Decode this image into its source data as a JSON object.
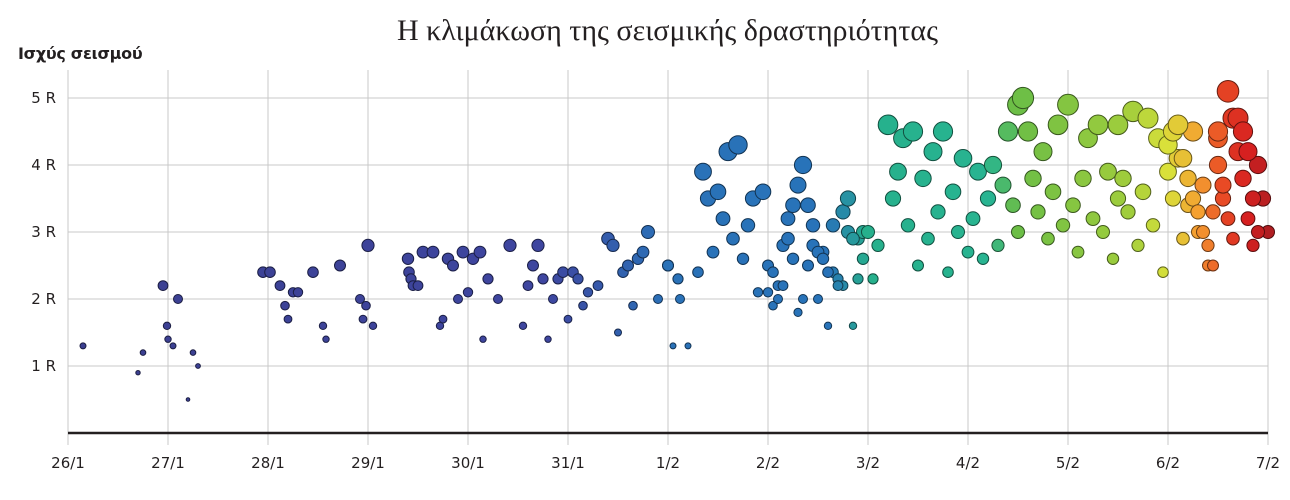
{
  "title": "Η κλιμάκωση της σεισμικής δραστηριότητας",
  "y_axis_label": "Ισχύς σεισμού",
  "chart_data": {
    "type": "scatter",
    "title": "Η κλιμάκωση της σεισμικής δραστηριότητας",
    "xlabel": "",
    "ylabel": "Ισχύς σεισμού",
    "x_ticks": [
      "26/1",
      "27/1",
      "28/1",
      "29/1",
      "30/1",
      "31/1",
      "1/2",
      "2/2",
      "3/2",
      "4/2",
      "5/2",
      "6/2",
      "7/2"
    ],
    "y_ticks": [
      "1 R",
      "2 R",
      "3 R",
      "4 R",
      "5 R"
    ],
    "xlim": [
      0,
      12
    ],
    "ylim": [
      0,
      5.5
    ],
    "grid": true,
    "x_unit": "days since 26/1",
    "y_unit": "Richter magnitude",
    "encoding": "marker size and color scale with magnitude and time (indigo → blue → teal → green → yellow → orange → red)",
    "points_by_day": [
      {
        "day": "26/1–27/1",
        "x": [
          0.15,
          0.7,
          0.75,
          0.95,
          0.99,
          1.0,
          1.05,
          1.1,
          1.2,
          1.25,
          1.3
        ],
        "y": [
          1.3,
          0.9,
          1.2,
          2.2,
          1.6,
          1.4,
          1.3,
          2.0,
          0.5,
          1.2,
          1.0
        ]
      },
      {
        "day": "28/1",
        "x": [
          1.95,
          2.02,
          2.12,
          2.17,
          2.2,
          2.25,
          2.3,
          2.45,
          2.55,
          2.58,
          2.72,
          2.92,
          2.95,
          2.98,
          3.0
        ],
        "y": [
          2.4,
          2.4,
          2.2,
          1.9,
          1.7,
          2.1,
          2.1,
          2.4,
          1.6,
          1.4,
          2.5,
          2.0,
          1.7,
          1.9,
          2.8
        ]
      },
      {
        "day": "29/1",
        "x": [
          3.05,
          3.4,
          3.41,
          3.43,
          3.45,
          3.5,
          3.55,
          3.65,
          3.72,
          3.75,
          3.8,
          3.85,
          3.9,
          3.95,
          4.0,
          4.05,
          4.12,
          4.15,
          4.2,
          4.3,
          4.42
        ],
        "y": [
          1.6,
          2.6,
          2.4,
          2.3,
          2.2,
          2.2,
          2.7,
          2.7,
          1.6,
          1.7,
          2.6,
          2.5,
          2.0,
          2.7,
          2.1,
          2.6,
          2.7,
          1.4,
          2.3,
          2.0,
          2.8
        ]
      },
      {
        "day": "30/1",
        "x": [
          4.55,
          4.6,
          4.65,
          4.7,
          4.75,
          4.8,
          4.85,
          4.9,
          4.95,
          5.0,
          5.05,
          5.1,
          5.15,
          5.2,
          5.3,
          5.4,
          5.45,
          5.5,
          5.55,
          5.6,
          5.65,
          5.7,
          5.75,
          5.8,
          5.9,
          6.0
        ],
        "y": [
          1.6,
          2.2,
          2.5,
          2.8,
          2.3,
          1.4,
          2.0,
          2.3,
          2.4,
          1.7,
          2.4,
          2.3,
          1.9,
          2.1,
          2.2,
          2.9,
          2.8,
          1.5,
          2.4,
          2.5,
          1.9,
          2.6,
          2.7,
          3.0,
          2.0,
          2.5
        ]
      },
      {
        "day": "31/1",
        "x": [
          6.0,
          6.05,
          6.1,
          6.12,
          6.2,
          6.3,
          6.35,
          6.4,
          6.45,
          6.5,
          6.55,
          6.6,
          6.65,
          6.7,
          6.75,
          6.8,
          6.85,
          6.9,
          6.95,
          7.0,
          7.05,
          7.1,
          7.15,
          7.2,
          7.25,
          7.3,
          7.35,
          7.4,
          7.45,
          7.5,
          7.55,
          7.6,
          7.65,
          7.7,
          7.75,
          7.8,
          7.85,
          7.9,
          7.95
        ],
        "y": [
          2.5,
          1.3,
          2.3,
          2.0,
          1.3,
          2.4,
          3.9,
          3.5,
          2.7,
          3.6,
          3.2,
          4.2,
          2.9,
          4.3,
          2.6,
          3.1,
          3.5,
          2.1,
          3.6,
          2.5,
          2.4,
          2.2,
          2.8,
          2.9,
          2.6,
          1.8,
          2.0,
          2.5,
          3.1,
          2.0,
          2.7,
          1.6,
          2.4,
          2.3,
          2.2,
          3.0,
          1.6,
          2.9,
          3.0
        ]
      },
      {
        "day": "1/2–2/2",
        "x": [
          7.0,
          7.05,
          7.1,
          7.15,
          7.2,
          7.25,
          7.3,
          7.35,
          7.4,
          7.45,
          7.5,
          7.55,
          7.6,
          7.65,
          7.7,
          7.75,
          7.8,
          7.85,
          7.9,
          7.95,
          8.0
        ],
        "y": [
          2.1,
          1.9,
          2.0,
          2.2,
          3.2,
          3.4,
          3.7,
          4.0,
          3.4,
          2.8,
          2.7,
          2.6,
          2.4,
          3.1,
          2.2,
          3.3,
          3.5,
          2.9,
          2.3,
          2.6,
          3.0
        ]
      },
      {
        "day": "2/2–3/2",
        "x": [
          8.05,
          8.1,
          8.2,
          8.25,
          8.3,
          8.35,
          8.4,
          8.45,
          8.5,
          8.55,
          8.6,
          8.65,
          8.7,
          8.75,
          8.8,
          8.85,
          8.9,
          8.95,
          9.0,
          9.05,
          9.1,
          9.15,
          9.2,
          9.25,
          9.3,
          9.35,
          9.4,
          9.45,
          9.5
        ],
        "y": [
          2.3,
          2.8,
          4.6,
          3.5,
          3.9,
          4.4,
          3.1,
          4.5,
          2.5,
          3.8,
          2.9,
          4.2,
          3.3,
          4.5,
          2.4,
          3.6,
          3.0,
          4.1,
          2.7,
          3.2,
          3.9,
          2.6,
          3.5,
          4.0,
          2.8,
          3.7,
          4.5,
          3.4,
          3.0
        ]
      },
      {
        "day": "3/2–4/2",
        "x": [
          9.5,
          9.55,
          9.6,
          9.65,
          9.7,
          9.75,
          9.8,
          9.85,
          9.9,
          9.95,
          10.0,
          10.05,
          10.1,
          10.15,
          10.2,
          10.25,
          10.3,
          10.35,
          10.4,
          10.45,
          10.5
        ],
        "y": [
          4.9,
          5.0,
          4.5,
          3.8,
          3.3,
          4.2,
          2.9,
          3.6,
          4.6,
          3.1,
          4.9,
          3.4,
          2.7,
          3.8,
          4.4,
          3.2,
          4.6,
          3.0,
          3.9,
          2.6,
          3.5
        ]
      },
      {
        "day": "4/2–5/2",
        "x": [
          10.5,
          10.55,
          10.6,
          10.65,
          10.7,
          10.75,
          10.8,
          10.85,
          10.9,
          10.95,
          11.0,
          11.05,
          11.1,
          11.15,
          11.2,
          11.25,
          11.3,
          11.35,
          11.4,
          11.45,
          11.5
        ],
        "y": [
          4.6,
          3.8,
          3.3,
          4.8,
          2.8,
          3.6,
          4.7,
          3.1,
          4.4,
          2.4,
          3.9,
          3.5,
          4.1,
          2.9,
          3.4,
          4.5,
          3.0,
          3.7,
          2.5,
          3.3,
          4.4
        ]
      },
      {
        "day": "5/2–6/2",
        "x": [
          11.5,
          11.55,
          11.6,
          11.65,
          11.7,
          11.75,
          11.8,
          11.85,
          11.9,
          11.95,
          12.0
        ],
        "y": [
          4.5,
          3.5,
          5.1,
          4.7,
          4.2,
          3.8,
          3.2,
          2.8,
          4.0,
          3.5,
          3.0
        ]
      },
      {
        "day": "6/2–7/2",
        "x": [
          11.0,
          11.05,
          11.1,
          11.15,
          11.2,
          11.25,
          11.3,
          11.35,
          11.4,
          11.45,
          11.5,
          11.55,
          11.6,
          11.65,
          11.7,
          11.75,
          11.8,
          11.85,
          11.9
        ],
        "y": [
          4.3,
          4.5,
          4.6,
          4.1,
          3.8,
          3.5,
          3.3,
          3.0,
          2.8,
          2.5,
          4.0,
          3.7,
          3.2,
          2.9,
          4.7,
          4.5,
          4.2,
          3.5,
          3.0
        ]
      }
    ]
  }
}
